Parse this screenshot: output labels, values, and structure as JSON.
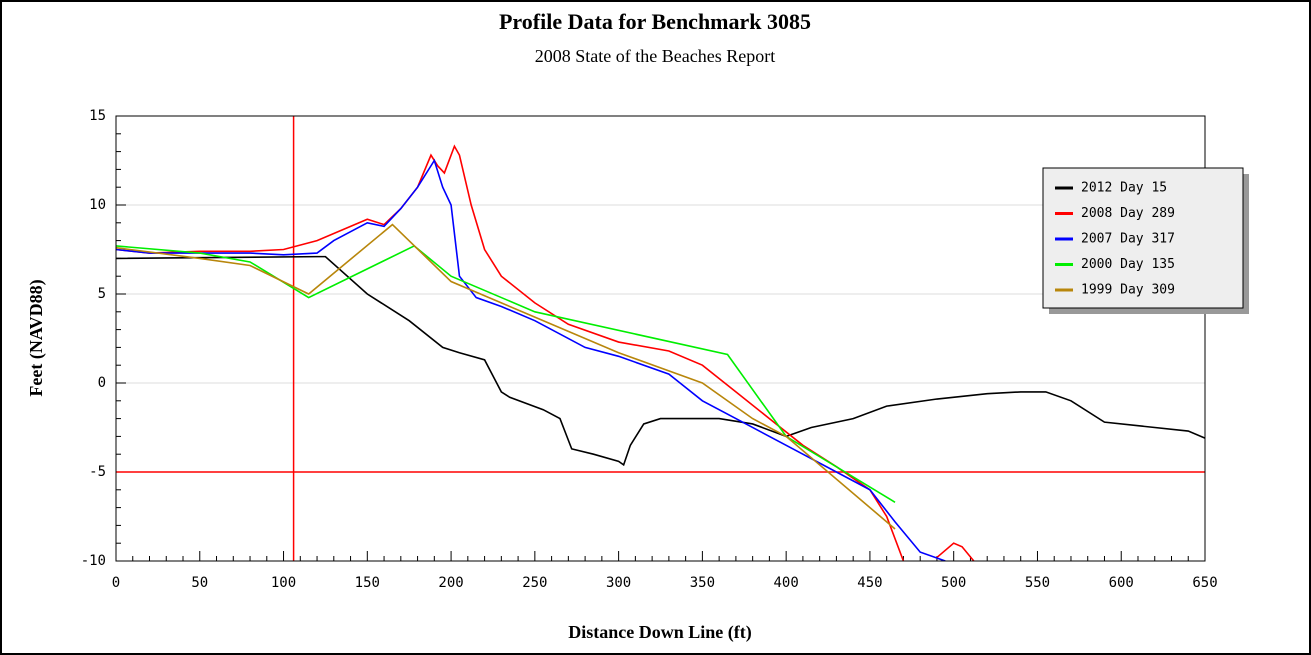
{
  "chart_data": {
    "type": "line",
    "title": "Profile Data for Benchmark 3085",
    "subtitle": "2008 State of the Beaches Report",
    "x_label": "Distance Down Line (ft)",
    "y_label": "Feet (NAVD88)",
    "xlim": [
      0,
      650
    ],
    "xticks": [
      0,
      50,
      100,
      150,
      200,
      250,
      300,
      350,
      400,
      450,
      500,
      550,
      600,
      650
    ],
    "ylim": [
      -10,
      15
    ],
    "yticks": [
      -10,
      -5,
      0,
      5,
      10,
      15
    ],
    "grid": true,
    "legend": "upper right",
    "reference_lines": {
      "x": 106,
      "y": -5,
      "color": "#ff0000"
    },
    "series": [
      {
        "name": "2012 Day 15",
        "color": "#000000",
        "x": [
          0,
          120,
          125,
          150,
          175,
          195,
          205,
          220,
          230,
          235,
          255,
          265,
          272,
          285,
          300,
          303,
          307,
          315,
          325,
          360,
          380,
          400,
          415,
          440,
          460,
          490,
          520,
          540,
          555,
          570,
          590,
          610,
          640,
          650
        ],
        "values": [
          7,
          7.1,
          7.1,
          5,
          3.5,
          2,
          1.7,
          1.3,
          -0.5,
          -0.8,
          -1.5,
          -2,
          -3.7,
          -4,
          -4.4,
          -4.6,
          -3.5,
          -2.3,
          -2,
          -2,
          -2.3,
          -3,
          -2.5,
          -2,
          -1.3,
          -0.9,
          -0.6,
          -0.5,
          -0.5,
          -1,
          -2.2,
          -2.4,
          -2.7,
          -3.1
        ]
      },
      {
        "name": "2008 Day 289",
        "color": "#ff0000",
        "x": [
          0,
          20,
          50,
          80,
          100,
          120,
          140,
          150,
          160,
          170,
          180,
          188,
          192,
          196,
          202,
          205,
          212,
          220,
          230,
          250,
          270,
          300,
          330,
          350,
          370,
          390,
          410,
          430,
          450,
          460,
          470,
          null,
          490,
          500,
          505,
          512
        ],
        "values": [
          7.5,
          7.3,
          7.4,
          7.4,
          7.5,
          8,
          8.8,
          9.2,
          8.9,
          9.8,
          11,
          12.8,
          12.2,
          11.8,
          13.3,
          12.8,
          10,
          7.5,
          6,
          4.5,
          3.3,
          2.3,
          1.8,
          1,
          -0.5,
          -2,
          -3.5,
          -4.7,
          -6,
          -7.5,
          -10,
          null,
          -9.8,
          -9,
          -9.2,
          -10
        ]
      },
      {
        "name": "2007 Day 317",
        "color": "#0000ff",
        "x": [
          0,
          20,
          50,
          80,
          100,
          120,
          130,
          150,
          160,
          170,
          180,
          190,
          195,
          200,
          205,
          215,
          230,
          250,
          280,
          300,
          330,
          350,
          370,
          390,
          410,
          430,
          450,
          465,
          480,
          495
        ],
        "values": [
          7.5,
          7.3,
          7.3,
          7.3,
          7.2,
          7.3,
          8,
          9,
          8.8,
          9.8,
          11,
          12.5,
          11,
          10,
          6,
          4.8,
          4.3,
          3.5,
          2,
          1.5,
          0.5,
          -1,
          -2,
          -3,
          -4,
          -5,
          -6,
          -7.8,
          -9.5,
          -10
        ]
      },
      {
        "name": "2000 Day 135",
        "color": "#00ee00",
        "x": [
          0,
          50,
          80,
          115,
          178,
          200,
          250,
          365,
          400,
          465
        ],
        "values": [
          7.7,
          7.3,
          6.8,
          4.8,
          7.7,
          6,
          4,
          1.6,
          -3,
          -6.7
        ]
      },
      {
        "name": "1999 Day 309",
        "color": "#b8860b",
        "x": [
          0,
          50,
          80,
          115,
          165,
          200,
          250,
          300,
          350,
          380,
          400,
          465
        ],
        "values": [
          7.6,
          7,
          6.6,
          5,
          8.9,
          5.7,
          3.7,
          1.7,
          0,
          -2,
          -3,
          -8.2
        ]
      }
    ]
  }
}
